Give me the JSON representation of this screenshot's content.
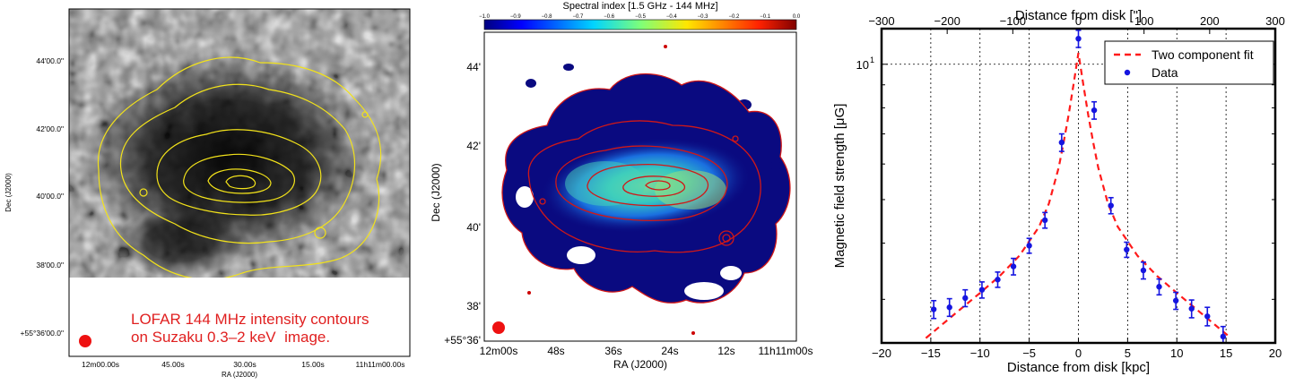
{
  "panels": {
    "xray": {
      "ra_label": "RA (J2000)",
      "dec_label": "Dec (J2000)",
      "ra_ticks": [
        "12m00.00s",
        "45.00s",
        "30.00s",
        "15.00s",
        "11h11m00.00s"
      ],
      "dec_ticks": [
        "44'00.0\"",
        "42'00.0\"",
        "40'00.0\"",
        "38'00.0\"",
        "+55°36'00.0\""
      ],
      "caption_line1": "LOFAR 144 MHz intensity contours",
      "caption_line2": "on Suzaku 0.3–2 keV  image.",
      "colors": {
        "contour": "#f2e21a",
        "caption": "#e02020",
        "beam": "#ee1111"
      }
    },
    "spectral": {
      "colorbar_title": "Spectral index [1.5 GHz - 144 MHz]",
      "colorbar_ticks": [
        "−1.0",
        "−0.9",
        "−0.8",
        "−0.7",
        "−0.6",
        "−0.5",
        "−0.4",
        "−0.3",
        "−0.2",
        "−0.1",
        "0.0"
      ],
      "ra_label": "RA (J2000)",
      "dec_label": "Dec (J2000)",
      "ra_ticks": [
        "12m00s",
        "48s",
        "36s",
        "24s",
        "12s",
        "11h11m00s"
      ],
      "dec_ticks": [
        "44'",
        "42'",
        "40'",
        "38'",
        "+55°36'"
      ],
      "colors": {
        "contour": "#d01818",
        "background": "#0a0a80"
      }
    }
  },
  "chart_data": {
    "type": "scatter",
    "title": "",
    "xlabel": "Distance from disk [kpc]",
    "ylabel": "Magnetic field strength [μG]",
    "x2label": "Distance from disk [\"]",
    "xlim": [
      -20,
      20
    ],
    "x2lim": [
      -300,
      300
    ],
    "ylim": [
      2.4,
      12
    ],
    "yscale": "log",
    "x_ticks": [
      "−20",
      "−15",
      "−10",
      "−5",
      "0",
      "5",
      "10",
      "15",
      "20"
    ],
    "x2_ticks": [
      "−300",
      "−200",
      "−100",
      "0",
      "100",
      "200",
      "300"
    ],
    "y_tick_label": "10",
    "y_tick_exponent": "1",
    "grid": true,
    "legend_position": "top-right",
    "series": [
      {
        "name": "Two component fit",
        "style": "dashed-line",
        "color": "#ff1a1a",
        "x": [
          -15.5,
          -14,
          -12,
          -10,
          -8,
          -6,
          -4,
          -3,
          -2,
          -1.5,
          -1,
          -0.5,
          0,
          0.5,
          1,
          1.5,
          2,
          3,
          4,
          6,
          8,
          10,
          12,
          14,
          15.5
        ],
        "y": [
          2.46,
          2.62,
          2.85,
          3.1,
          3.38,
          3.75,
          4.35,
          4.9,
          5.9,
          6.7,
          7.7,
          9.0,
          10.6,
          9.0,
          7.7,
          6.7,
          5.9,
          4.9,
          4.35,
          3.75,
          3.38,
          3.1,
          2.85,
          2.62,
          2.46
        ]
      },
      {
        "name": "Data",
        "style": "points-with-errorbars",
        "color": "#1515e0",
        "x": [
          -14.7,
          -13.1,
          -11.5,
          -9.8,
          -8.2,
          -6.6,
          -5.0,
          -3.4,
          -1.7,
          0.0,
          1.6,
          3.3,
          4.9,
          6.6,
          8.2,
          9.9,
          11.5,
          13.1,
          14.7
        ],
        "y": [
          2.85,
          2.88,
          3.02,
          3.15,
          3.32,
          3.55,
          3.95,
          4.5,
          6.7,
          11.4,
          7.9,
          4.85,
          3.87,
          3.48,
          3.2,
          2.98,
          2.86,
          2.75,
          2.48
        ],
        "yerr": [
          0.13,
          0.13,
          0.13,
          0.13,
          0.13,
          0.15,
          0.15,
          0.18,
          0.3,
          0.5,
          0.35,
          0.2,
          0.15,
          0.15,
          0.13,
          0.13,
          0.13,
          0.13,
          0.13
        ]
      }
    ]
  }
}
